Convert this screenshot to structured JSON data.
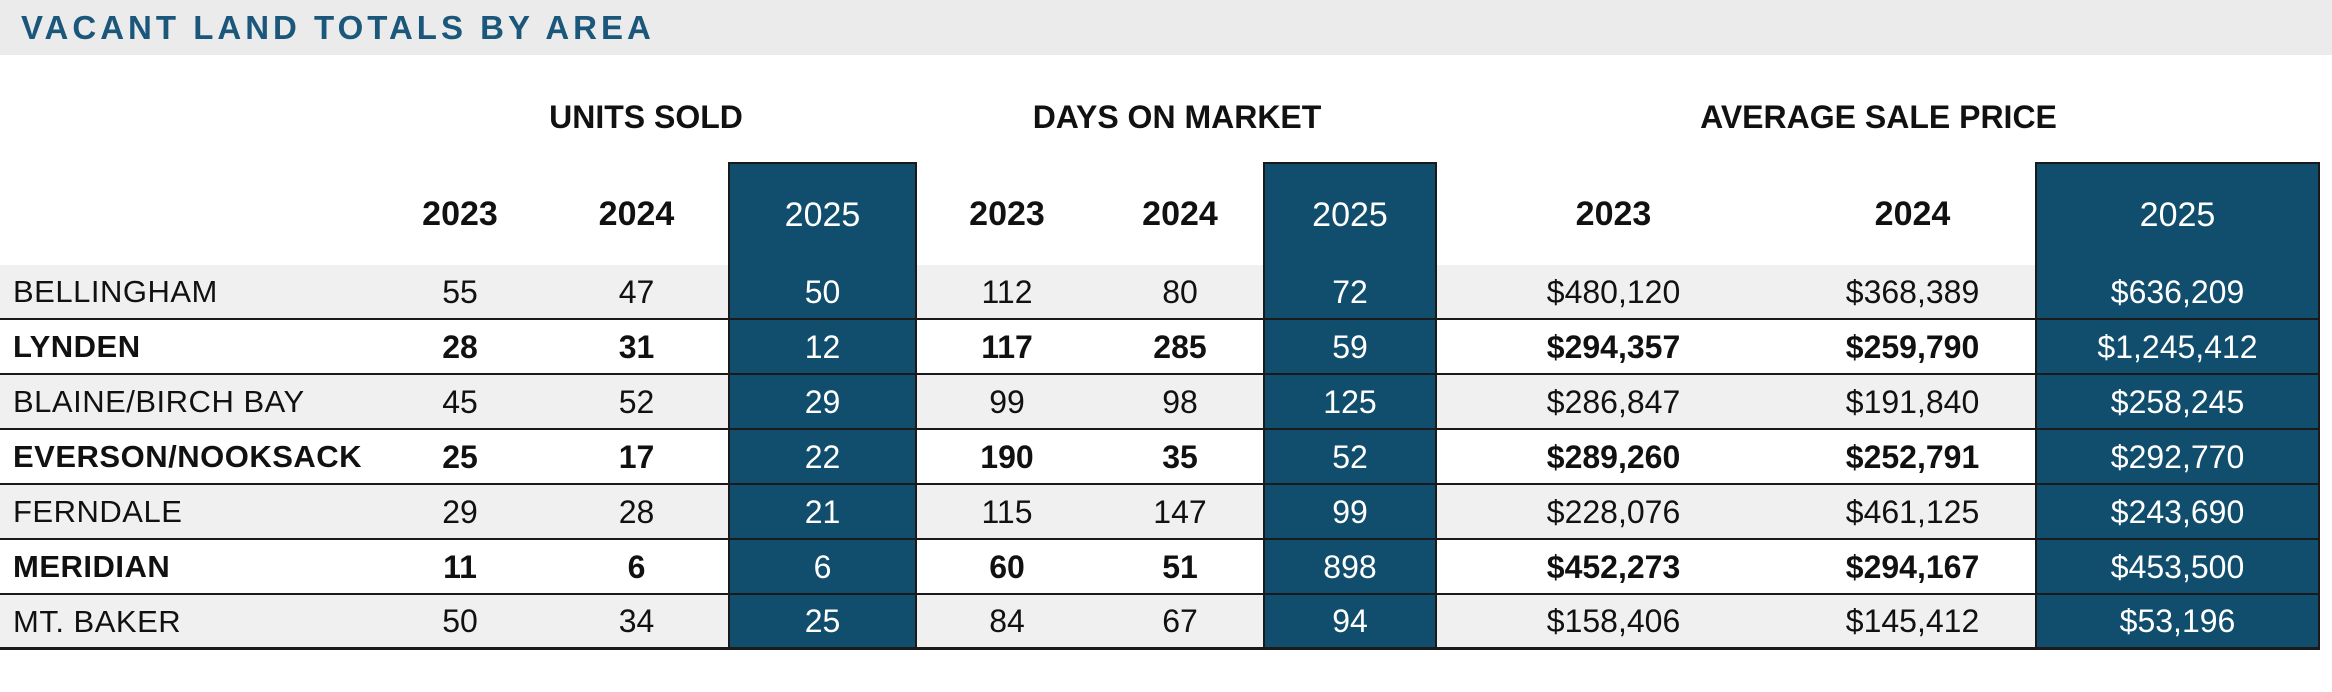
{
  "title": "VACANT LAND TOTALS BY AREA",
  "colors": {
    "accent_blue": "#114e6d",
    "title_text": "#1a577b",
    "title_band_bg": "#ebebeb",
    "alt_row_bg": "#f0f0f0",
    "grid_line": "#1a1a1a",
    "highlight_text": "#ffffff"
  },
  "groups": {
    "units_sold": "UNITS SOLD",
    "days_on_market": "DAYS ON MARKET",
    "avg_sale_price": "AVERAGE SALE PRICE"
  },
  "years": {
    "y2023": "2023",
    "y2024": "2024",
    "y2025": "2025"
  },
  "table": {
    "rows": [
      {
        "area": "BELLINGHAM",
        "units_sold": [
          "55",
          "47",
          "50"
        ],
        "days_on_market": [
          "112",
          "80",
          "72"
        ],
        "avg_sale_price": [
          "$480,120",
          "$368,389",
          "$636,209"
        ]
      },
      {
        "area": "LYNDEN",
        "units_sold": [
          "28",
          "31",
          "12"
        ],
        "days_on_market": [
          "117",
          "285",
          "59"
        ],
        "avg_sale_price": [
          "$294,357",
          "$259,790",
          "$1,245,412"
        ]
      },
      {
        "area": "BLAINE/BIRCH BAY",
        "units_sold": [
          "45",
          "52",
          "29"
        ],
        "days_on_market": [
          "99",
          "98",
          "125"
        ],
        "avg_sale_price": [
          "$286,847",
          "$191,840",
          "$258,245"
        ]
      },
      {
        "area": "EVERSON/NOOKSACK",
        "units_sold": [
          "25",
          "17",
          "22"
        ],
        "days_on_market": [
          "190",
          "35",
          "52"
        ],
        "avg_sale_price": [
          "$289,260",
          "$252,791",
          "$292,770"
        ]
      },
      {
        "area": "FERNDALE",
        "units_sold": [
          "29",
          "28",
          "21"
        ],
        "days_on_market": [
          "115",
          "147",
          "99"
        ],
        "avg_sale_price": [
          "$228,076",
          "$461,125",
          "$243,690"
        ]
      },
      {
        "area": "MERIDIAN",
        "units_sold": [
          "11",
          "6",
          "6"
        ],
        "days_on_market": [
          "60",
          "51",
          "898"
        ],
        "avg_sale_price": [
          "$452,273",
          "$294,167",
          "$453,500"
        ]
      },
      {
        "area": "MT. BAKER",
        "units_sold": [
          "50",
          "34",
          "25"
        ],
        "days_on_market": [
          "84",
          "67",
          "94"
        ],
        "avg_sale_price": [
          "$158,406",
          "$145,412",
          "$53,196"
        ]
      }
    ]
  },
  "chart_data": {
    "type": "table",
    "title": "VACANT LAND TOTALS BY AREA",
    "column_groups": [
      "UNITS SOLD",
      "DAYS ON MARKET",
      "AVERAGE SALE PRICE"
    ],
    "years": [
      2023,
      2024,
      2025
    ],
    "highlighted_year": 2025,
    "rows": [
      {
        "area": "BELLINGHAM",
        "units_sold": [
          55,
          47,
          50
        ],
        "days_on_market": [
          112,
          80,
          72
        ],
        "avg_sale_price": [
          480120,
          368389,
          636209
        ]
      },
      {
        "area": "LYNDEN",
        "units_sold": [
          28,
          31,
          12
        ],
        "days_on_market": [
          117,
          285,
          59
        ],
        "avg_sale_price": [
          294357,
          259790,
          1245412
        ]
      },
      {
        "area": "BLAINE/BIRCH BAY",
        "units_sold": [
          45,
          52,
          29
        ],
        "days_on_market": [
          99,
          98,
          125
        ],
        "avg_sale_price": [
          286847,
          191840,
          258245
        ]
      },
      {
        "area": "EVERSON/NOOKSACK",
        "units_sold": [
          25,
          17,
          22
        ],
        "days_on_market": [
          190,
          35,
          52
        ],
        "avg_sale_price": [
          289260,
          252791,
          292770
        ]
      },
      {
        "area": "FERNDALE",
        "units_sold": [
          29,
          28,
          21
        ],
        "days_on_market": [
          115,
          147,
          99
        ],
        "avg_sale_price": [
          228076,
          461125,
          243690
        ]
      },
      {
        "area": "MERIDIAN",
        "units_sold": [
          11,
          6,
          6
        ],
        "days_on_market": [
          60,
          51,
          898
        ],
        "avg_sale_price": [
          452273,
          294167,
          453500
        ]
      },
      {
        "area": "MT. BAKER",
        "units_sold": [
          50,
          34,
          25
        ],
        "days_on_market": [
          84,
          67,
          94
        ],
        "avg_sale_price": [
          158406,
          145412,
          53196
        ]
      }
    ]
  }
}
